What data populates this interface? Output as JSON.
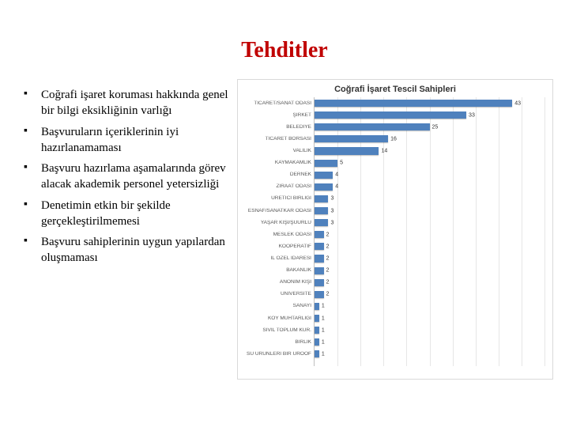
{
  "title": "Tehditler",
  "title_color": "#c00000",
  "bullets": [
    "Coğrafi işaret koruması hakkında genel bir bilgi eksikliğinin varlığı",
    "Başvuruların içeriklerinin iyi hazırlanamaması",
    "Başvuru hazırlama aşamalarında görev alacak akademik personel yetersizliği",
    "Denetimin etkin bir şekilde gerçekleştirilmemesi",
    "Başvuru sahiplerinin uygun yapılardan oluşmaması"
  ],
  "chart": {
    "type": "bar",
    "title": "Coğrafi İşaret Tescil Sahipleri",
    "title_fontsize": 11,
    "bar_color": "#4f81bd",
    "grid_color": "#e6e6e6",
    "axis_color": "#bfbfbf",
    "background_color": "#ffffff",
    "border_color": "#d9d9d9",
    "label_color": "#555555",
    "value_color": "#333333",
    "label_fontsize": 6.5,
    "value_fontsize": 7,
    "xlim": [
      0,
      50
    ],
    "xtick_step": 5,
    "categories": [
      "TİCARET/SANAT ODASI",
      "ŞİRKET",
      "BELEDİYE",
      "TİCARET BORSASI",
      "VALİLİK",
      "KAYMAKAMLIK",
      "DERNEK",
      "ZİRAAT ODASI",
      "ÜRETİCİ BİRLİĞİ",
      "ESNAF/SANATKAR ODASI",
      "YAŞAR KİŞİ/ŞUURLU",
      "MESLEK ODASI",
      "KOOPERATİF",
      "İL ÖZEL İDARESİ",
      "BAKANLIK",
      "ANONİM KİŞİ",
      "ÜNİVERSİTE",
      "SANAYİ",
      "KÖY MUHTARLIĞI",
      "SİVİL TOPLUM KUR.",
      "BİRLİK",
      "SU ÜRÜNLERİ BİR ÜROOF"
    ],
    "values": [
      43,
      33,
      25,
      16,
      14,
      5,
      4,
      4,
      3,
      3,
      3,
      2,
      2,
      2,
      2,
      2,
      2,
      1,
      1,
      1,
      1,
      1
    ]
  }
}
